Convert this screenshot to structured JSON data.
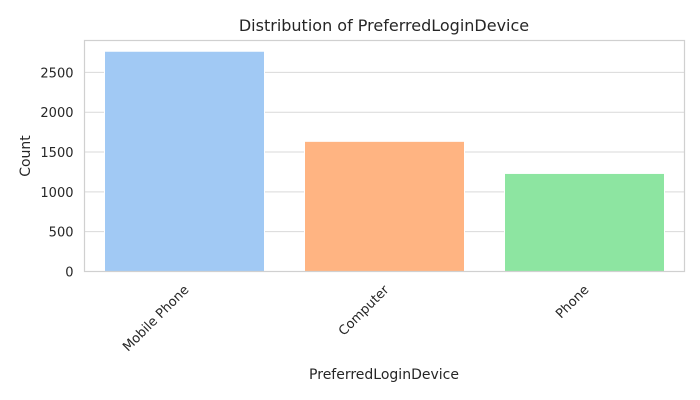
{
  "chart_data": {
    "type": "bar",
    "title": "Distribution of PreferredLoginDevice",
    "xlabel": "PreferredLoginDevice",
    "ylabel": "Count",
    "categories": [
      "Mobile Phone",
      "Computer",
      "Phone"
    ],
    "values": [
      2765,
      1634,
      1231
    ],
    "ylim": [
      0,
      2900
    ],
    "yticks": [
      0,
      500,
      1000,
      1500,
      2000,
      2500
    ],
    "colors": [
      "#a1c9f4",
      "#ffb482",
      "#8de5a1"
    ],
    "grid": true,
    "legend": "none"
  }
}
